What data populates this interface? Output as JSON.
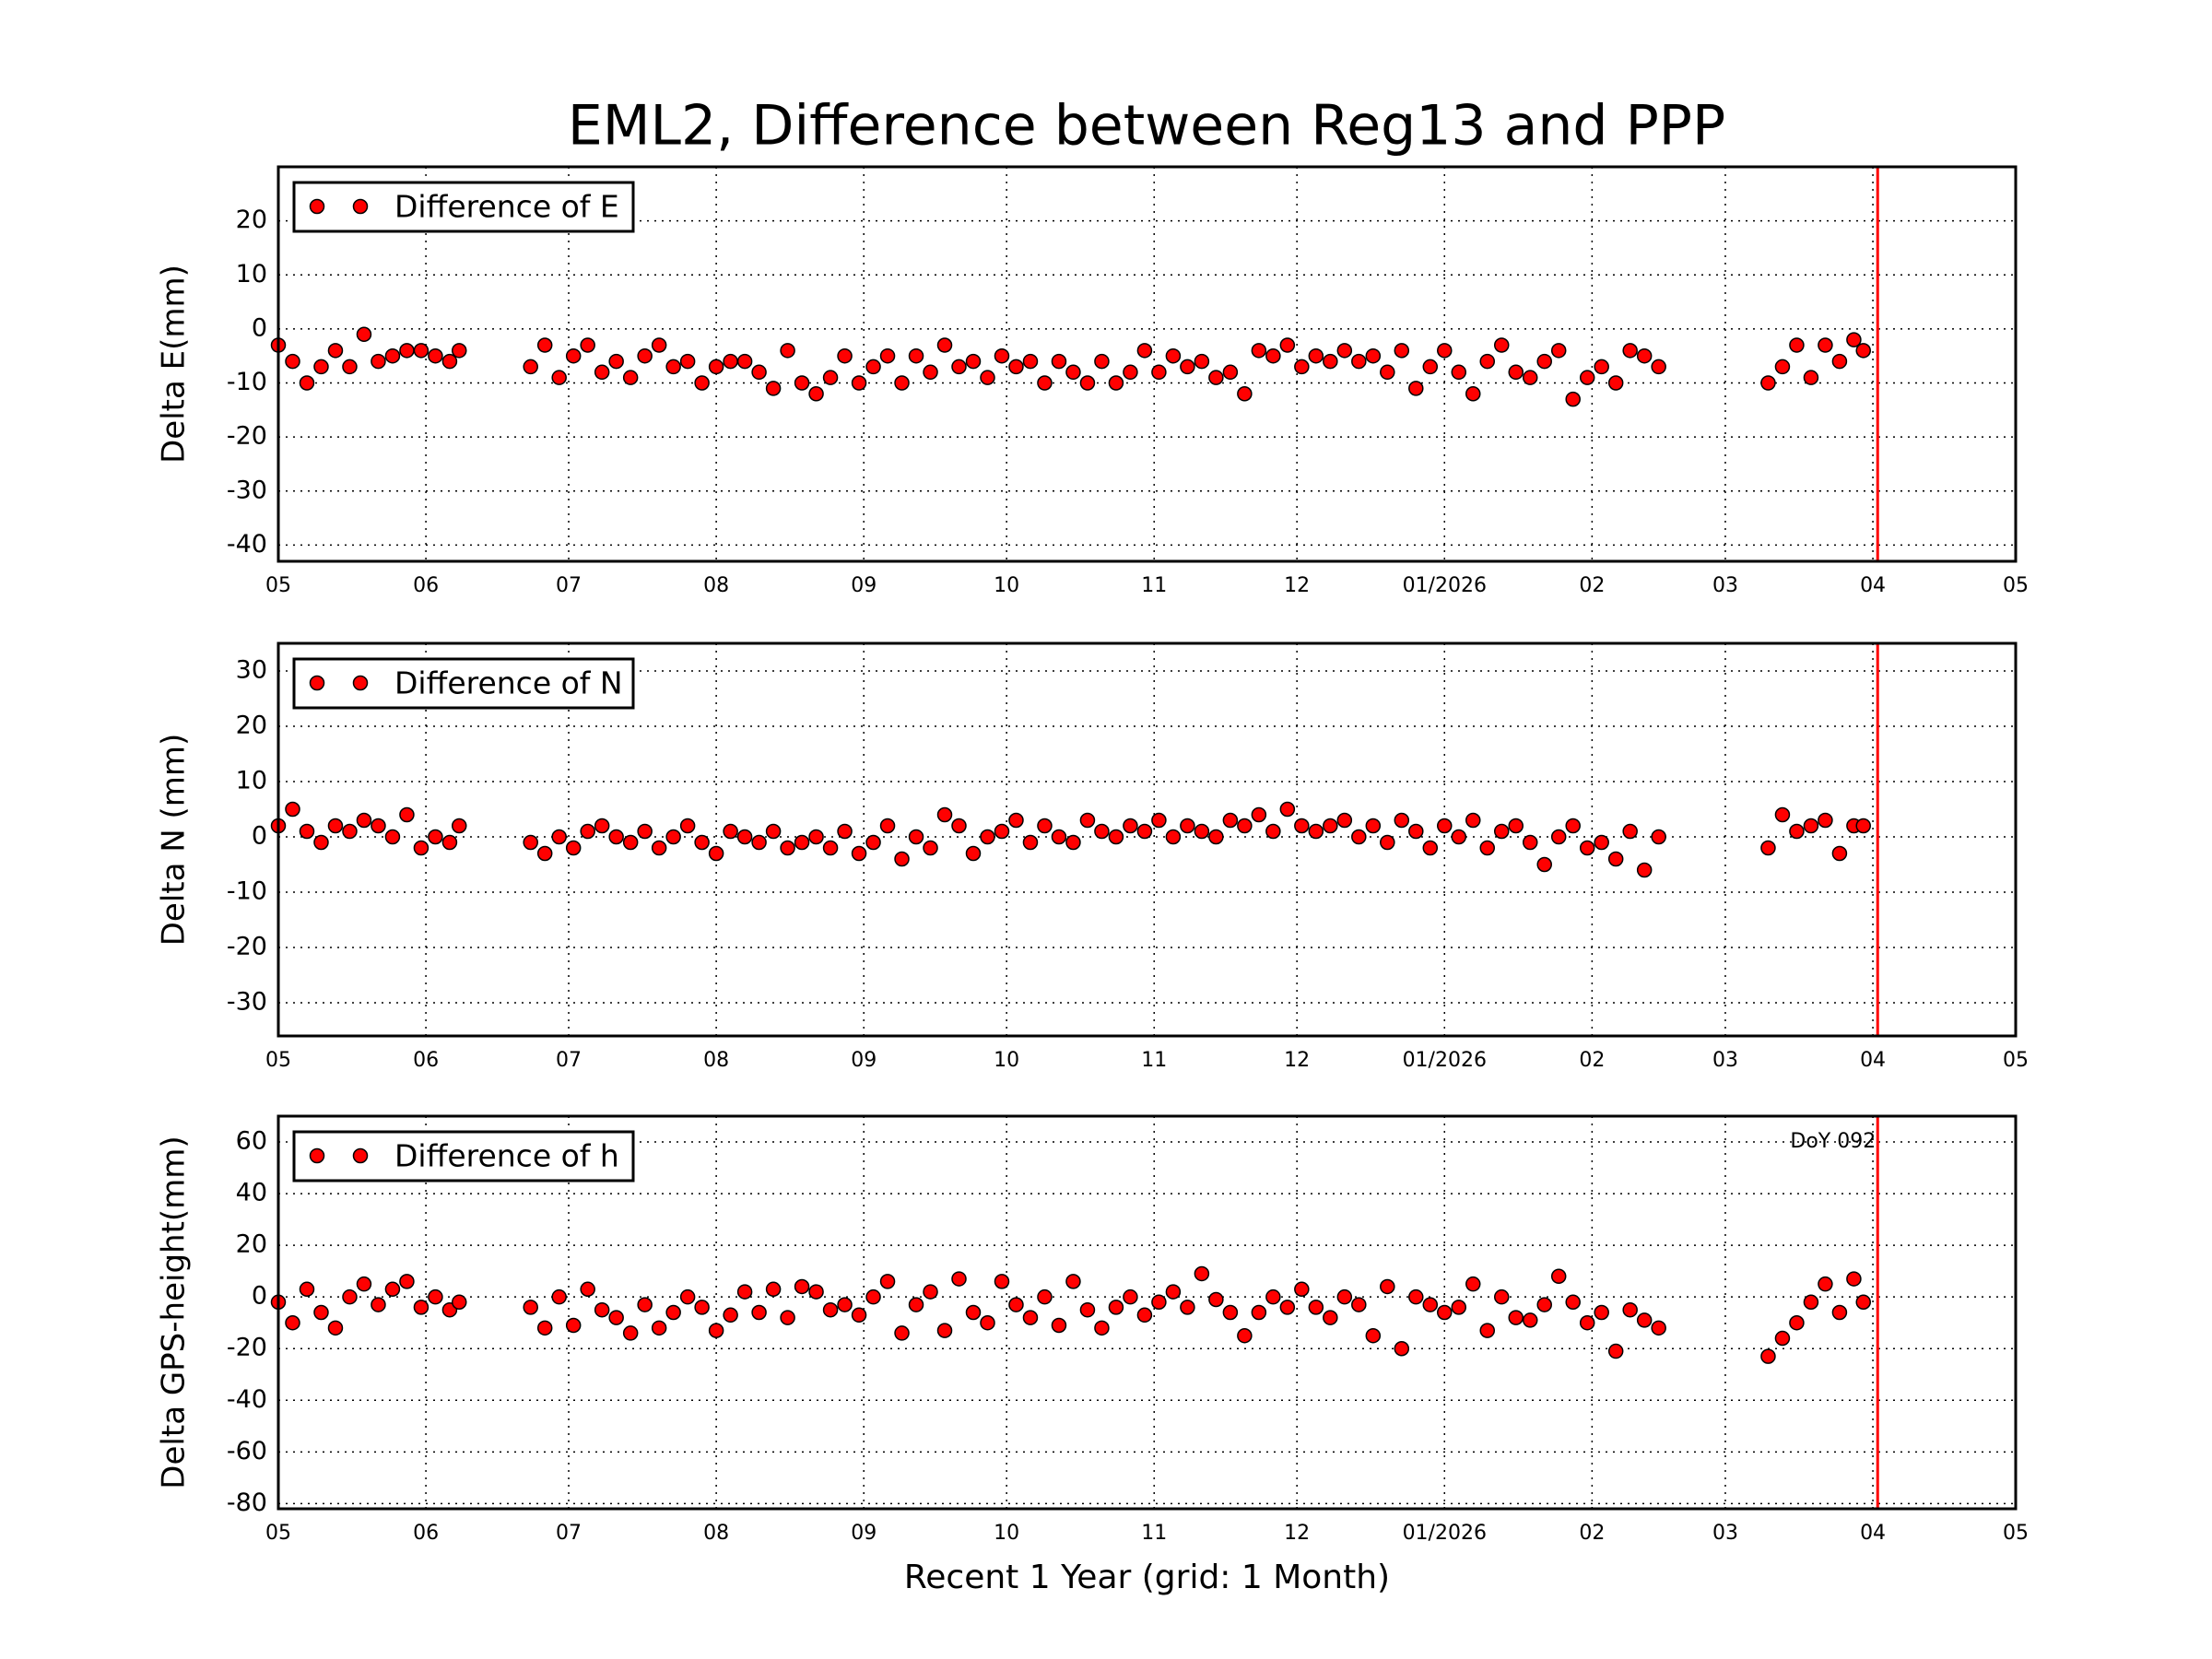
{
  "title": "EML2, Difference between Reg13 and PPP",
  "chart_data": [
    {
      "type": "scatter",
      "ylabel": "Delta E(mm)",
      "xlim": [
        0,
        365
      ],
      "ylim": [
        -43,
        30
      ],
      "xticks": [
        {
          "value": 0,
          "label": "05"
        },
        {
          "value": 31,
          "label": "06"
        },
        {
          "value": 61,
          "label": "07"
        },
        {
          "value": 92,
          "label": "08"
        },
        {
          "value": 123,
          "label": "09"
        },
        {
          "value": 153,
          "label": "10"
        },
        {
          "value": 184,
          "label": "11"
        },
        {
          "value": 214,
          "label": "12"
        },
        {
          "value": 245,
          "label": "01/2026"
        },
        {
          "value": 276,
          "label": "02"
        },
        {
          "value": 304,
          "label": "03"
        },
        {
          "value": 335,
          "label": "04"
        },
        {
          "value": 365,
          "label": "05"
        }
      ],
      "yticks": [
        -40,
        -30,
        -20,
        -10,
        0,
        10,
        20
      ],
      "grid": true,
      "vline": 336,
      "vline_color": "#ff0000",
      "x": [
        0,
        3,
        6,
        9,
        12,
        15,
        18,
        21,
        24,
        27,
        30,
        33,
        36,
        38,
        53,
        56,
        59,
        62,
        65,
        68,
        71,
        74,
        77,
        80,
        83,
        86,
        89,
        92,
        95,
        98,
        101,
        104,
        107,
        110,
        113,
        116,
        119,
        122,
        125,
        128,
        131,
        134,
        137,
        140,
        143,
        146,
        149,
        152,
        155,
        158,
        161,
        164,
        167,
        170,
        173,
        176,
        179,
        182,
        185,
        188,
        191,
        194,
        197,
        200,
        203,
        206,
        209,
        212,
        215,
        218,
        221,
        224,
        227,
        230,
        233,
        236,
        239,
        242,
        245,
        248,
        251,
        254,
        257,
        260,
        263,
        266,
        269,
        272,
        275,
        278,
        281,
        284,
        287,
        290,
        313,
        316,
        319,
        322,
        325,
        328,
        331,
        333
      ],
      "series": [
        {
          "name": "Difference of E",
          "color": "#ff0000",
          "values": [
            -3,
            -6,
            -10,
            -7,
            -4,
            -7,
            -1,
            -6,
            -5,
            -4,
            -4,
            -5,
            -6,
            -4,
            -7,
            -3,
            -9,
            -5,
            -3,
            -8,
            -6,
            -9,
            -5,
            -3,
            -7,
            -6,
            -10,
            -7,
            -6,
            -6,
            -8,
            -11,
            -4,
            -10,
            -12,
            -9,
            -5,
            -10,
            -7,
            -5,
            -10,
            -5,
            -8,
            -3,
            -7,
            -6,
            -9,
            -5,
            -7,
            -6,
            -10,
            -6,
            -8,
            -10,
            -6,
            -10,
            -8,
            -4,
            -8,
            -5,
            -7,
            -6,
            -9,
            -8,
            -12,
            -4,
            -5,
            -3,
            -7,
            -5,
            -6,
            -4,
            -6,
            -5,
            -8,
            -4,
            -11,
            -7,
            -4,
            -8,
            -12,
            -6,
            -3,
            -8,
            -9,
            -6,
            -4,
            -13,
            -9,
            -7,
            -10,
            -4,
            -5,
            -7,
            -10,
            -7,
            -3,
            -9,
            -3,
            -6,
            -2,
            -4
          ]
        }
      ]
    },
    {
      "type": "scatter",
      "ylabel": "Delta N (mm)",
      "xlim": [
        0,
        365
      ],
      "ylim": [
        -36,
        35
      ],
      "xticks": [
        {
          "value": 0,
          "label": "05"
        },
        {
          "value": 31,
          "label": "06"
        },
        {
          "value": 61,
          "label": "07"
        },
        {
          "value": 92,
          "label": "08"
        },
        {
          "value": 123,
          "label": "09"
        },
        {
          "value": 153,
          "label": "10"
        },
        {
          "value": 184,
          "label": "11"
        },
        {
          "value": 214,
          "label": "12"
        },
        {
          "value": 245,
          "label": "01/2026"
        },
        {
          "value": 276,
          "label": "02"
        },
        {
          "value": 304,
          "label": "03"
        },
        {
          "value": 335,
          "label": "04"
        },
        {
          "value": 365,
          "label": "05"
        }
      ],
      "yticks": [
        -30,
        -20,
        -10,
        0,
        10,
        20,
        30
      ],
      "grid": true,
      "vline": 336,
      "vline_color": "#ff0000",
      "x": [
        0,
        3,
        6,
        9,
        12,
        15,
        18,
        21,
        24,
        27,
        30,
        33,
        36,
        38,
        53,
        56,
        59,
        62,
        65,
        68,
        71,
        74,
        77,
        80,
        83,
        86,
        89,
        92,
        95,
        98,
        101,
        104,
        107,
        110,
        113,
        116,
        119,
        122,
        125,
        128,
        131,
        134,
        137,
        140,
        143,
        146,
        149,
        152,
        155,
        158,
        161,
        164,
        167,
        170,
        173,
        176,
        179,
        182,
        185,
        188,
        191,
        194,
        197,
        200,
        203,
        206,
        209,
        212,
        215,
        218,
        221,
        224,
        227,
        230,
        233,
        236,
        239,
        242,
        245,
        248,
        251,
        254,
        257,
        260,
        263,
        266,
        269,
        272,
        275,
        278,
        281,
        284,
        287,
        290,
        313,
        316,
        319,
        322,
        325,
        328,
        331,
        333
      ],
      "series": [
        {
          "name": "Difference of N",
          "color": "#ff0000",
          "values": [
            2,
            5,
            1,
            -1,
            2,
            1,
            3,
            2,
            0,
            4,
            -2,
            0,
            -1,
            2,
            -1,
            -3,
            0,
            -2,
            1,
            2,
            0,
            -1,
            1,
            -2,
            0,
            2,
            -1,
            -3,
            1,
            0,
            -1,
            1,
            -2,
            -1,
            0,
            -2,
            1,
            -3,
            -1,
            2,
            -4,
            0,
            -2,
            4,
            2,
            -3,
            0,
            1,
            3,
            -1,
            2,
            0,
            -1,
            3,
            1,
            0,
            2,
            1,
            3,
            0,
            2,
            1,
            0,
            3,
            2,
            4,
            1,
            5,
            2,
            1,
            2,
            3,
            0,
            2,
            -1,
            3,
            1,
            -2,
            2,
            0,
            3,
            -2,
            1,
            2,
            -1,
            -5,
            0,
            2,
            -2,
            -1,
            -4,
            1,
            -6,
            0,
            -2,
            4,
            1,
            2,
            3,
            -3,
            2,
            2
          ]
        }
      ]
    },
    {
      "type": "scatter",
      "ylabel": "Delta GPS-height(mm)",
      "xlabel": "Recent 1 Year (grid: 1 Month)",
      "annotation": "DoY 092",
      "xlim": [
        0,
        365
      ],
      "ylim": [
        -82,
        70
      ],
      "xticks": [
        {
          "value": 0,
          "label": "05"
        },
        {
          "value": 31,
          "label": "06"
        },
        {
          "value": 61,
          "label": "07"
        },
        {
          "value": 92,
          "label": "08"
        },
        {
          "value": 123,
          "label": "09"
        },
        {
          "value": 153,
          "label": "10"
        },
        {
          "value": 184,
          "label": "11"
        },
        {
          "value": 214,
          "label": "12"
        },
        {
          "value": 245,
          "label": "01/2026"
        },
        {
          "value": 276,
          "label": "02"
        },
        {
          "value": 304,
          "label": "03"
        },
        {
          "value": 335,
          "label": "04"
        },
        {
          "value": 365,
          "label": "05"
        }
      ],
      "yticks": [
        -80,
        -60,
        -40,
        -20,
        0,
        20,
        40,
        60
      ],
      "grid": true,
      "vline": 336,
      "vline_color": "#ff0000",
      "x": [
        0,
        3,
        6,
        9,
        12,
        15,
        18,
        21,
        24,
        27,
        30,
        33,
        36,
        38,
        53,
        56,
        59,
        62,
        65,
        68,
        71,
        74,
        77,
        80,
        83,
        86,
        89,
        92,
        95,
        98,
        101,
        104,
        107,
        110,
        113,
        116,
        119,
        122,
        125,
        128,
        131,
        134,
        137,
        140,
        143,
        146,
        149,
        152,
        155,
        158,
        161,
        164,
        167,
        170,
        173,
        176,
        179,
        182,
        185,
        188,
        191,
        194,
        197,
        200,
        203,
        206,
        209,
        212,
        215,
        218,
        221,
        224,
        227,
        230,
        233,
        236,
        239,
        242,
        245,
        248,
        251,
        254,
        257,
        260,
        263,
        266,
        269,
        272,
        275,
        278,
        281,
        284,
        287,
        290,
        313,
        316,
        319,
        322,
        325,
        328,
        331,
        333
      ],
      "series": [
        {
          "name": "Difference of h",
          "color": "#ff0000",
          "values": [
            -2,
            -10,
            3,
            -6,
            -12,
            0,
            5,
            -3,
            3,
            6,
            -4,
            0,
            -5,
            -2,
            -4,
            -12,
            0,
            -11,
            3,
            -5,
            -8,
            -14,
            -3,
            -12,
            -6,
            0,
            -4,
            -13,
            -7,
            2,
            -6,
            3,
            -8,
            4,
            2,
            -5,
            -3,
            -7,
            0,
            6,
            -14,
            -3,
            2,
            -13,
            7,
            -6,
            -10,
            6,
            -3,
            -8,
            0,
            -11,
            6,
            -5,
            -12,
            -4,
            0,
            -7,
            -2,
            2,
            -4,
            9,
            -1,
            -6,
            -15,
            -6,
            0,
            -4,
            3,
            -4,
            -8,
            0,
            -3,
            -15,
            4,
            -20,
            0,
            -3,
            -6,
            -4,
            5,
            -13,
            0,
            -8,
            -9,
            -3,
            8,
            -2,
            -10,
            -6,
            -21,
            -5,
            -9,
            -12,
            -23,
            -16,
            -10,
            -2,
            5,
            -6,
            7,
            -2
          ]
        }
      ]
    }
  ]
}
